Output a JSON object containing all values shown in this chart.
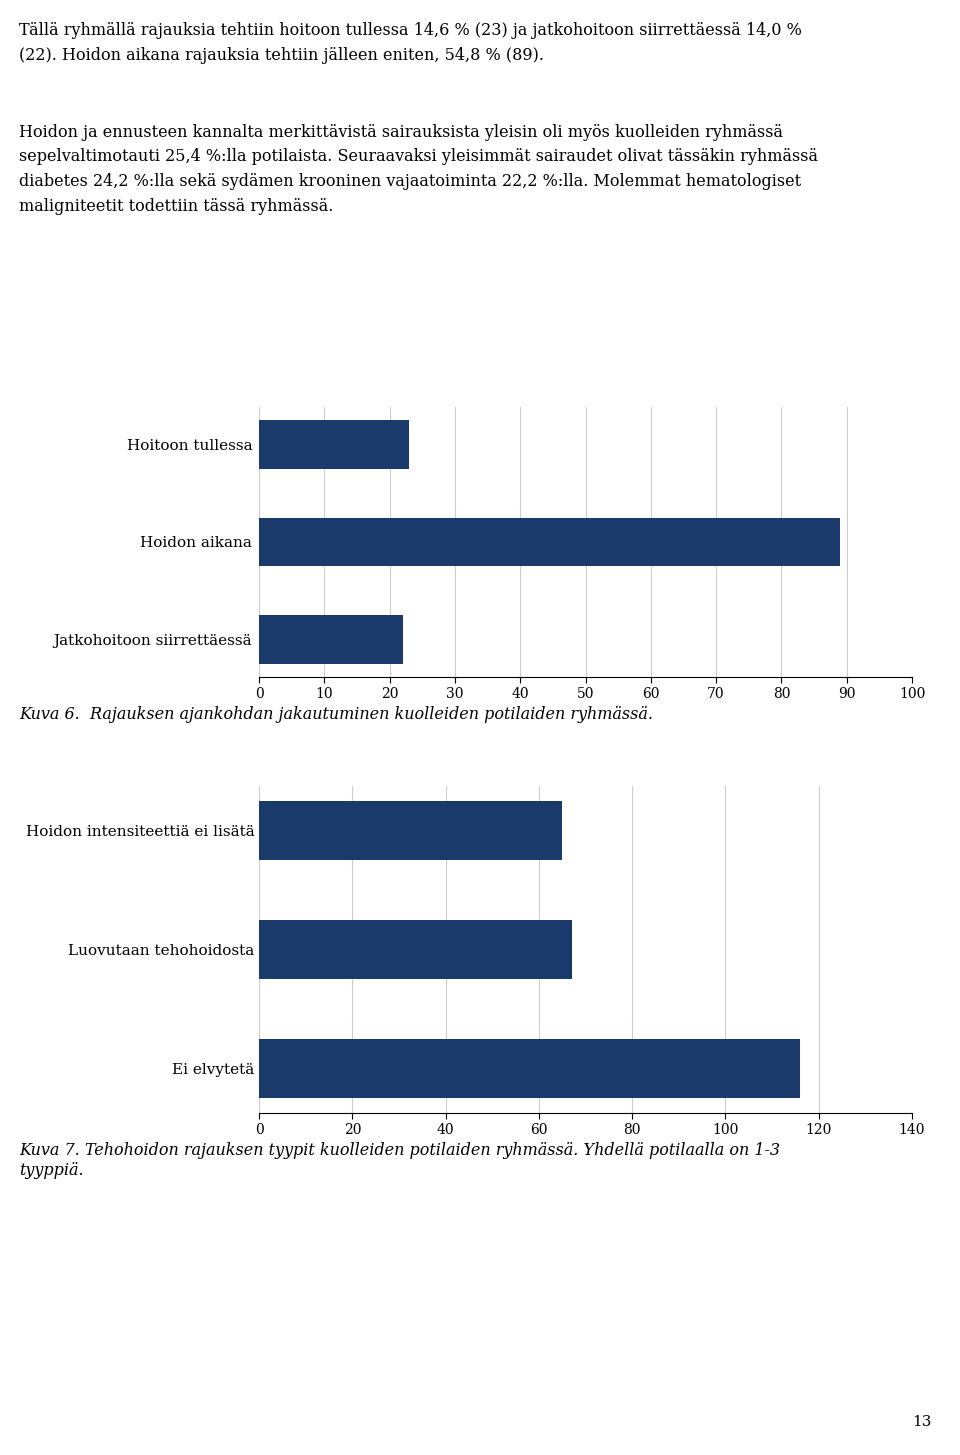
{
  "page_bg": "#ffffff",
  "text_color": "#000000",
  "bar_color": "#1a3a6b",
  "paragraph1": "Tällä ryhmällä rajauksia tehtiin hoitoon tullessa 14,6 % (23) ja jatkohoitoon siirrettäessä 14,0 %\n(22). Hoidon aikana rajauksia tehtiin jälleen eniten, 54,8 % (89).",
  "paragraph2": "Hoidon ja ennusteen kannalta merkittävistä sairauksista yleisin oli myös kuolleiden ryhmässä\nsepelvaltimotauti 25,4 %:lla potilaista. Seuraavaksi yleisimmät sairaudet olivat tässäkin ryhmässä\ndiabetes 24,2 %:lla sekä sydämen krooninen vajaatoiminta 22,2 %:lla. Molemmat hematologiset\nmaligniteetit todettiin tässä ryhmässä.",
  "chart1": {
    "categories": [
      "Hoitoon tullessa",
      "Hoidon aikana",
      "Jatkohoitoon siirrettäessä"
    ],
    "values": [
      23,
      89,
      22
    ],
    "xlim": [
      0,
      100
    ],
    "xticks": [
      0,
      10,
      20,
      30,
      40,
      50,
      60,
      70,
      80,
      90,
      100
    ],
    "caption": "Kuva 6.  Rajauksen ajankohdan jakautuminen kuolleiden potilaiden ryhmässä."
  },
  "chart2": {
    "categories": [
      "Hoidon intensiteettiä ei lisätä",
      "Luovutaan tehohoidosta",
      "Ei elvytetä"
    ],
    "values": [
      65,
      67,
      116
    ],
    "xlim": [
      0,
      140
    ],
    "xticks": [
      0,
      20,
      40,
      60,
      80,
      100,
      120,
      140
    ],
    "caption": "Kuva 7. Tehohoidon rajauksen tyypit kuolleiden potilaiden ryhmässä. Yhdellä potilaalla on 1-3\ntyyppiä."
  },
  "page_number": "13"
}
